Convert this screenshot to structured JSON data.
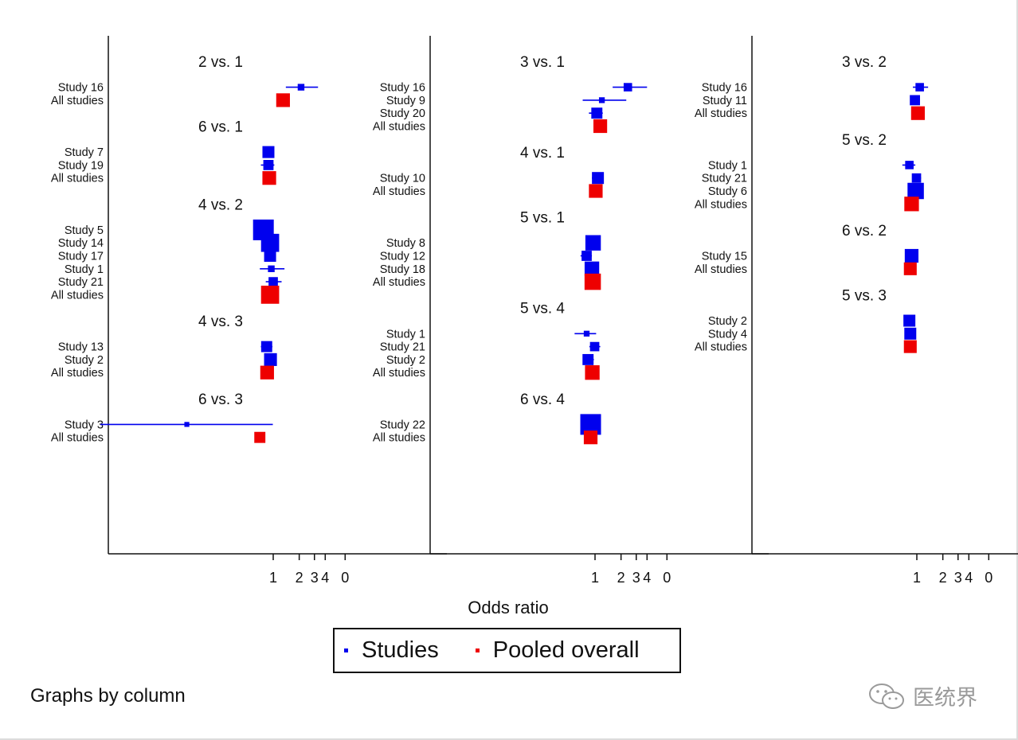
{
  "colors": {
    "study": "#0000ee",
    "pooled": "#ee0000",
    "axis": "#111111"
  },
  "chart_data": {
    "type": "forest",
    "xlabel": "Odds ratio",
    "xscale": "log",
    "xticks": [
      "1",
      "2",
      "3",
      "4",
      "0"
    ],
    "legend": [
      {
        "label": "Studies",
        "color": "#0000ee"
      },
      {
        "label": "Pooled overall",
        "color": "#ee0000"
      }
    ],
    "footer": "Graphs by column",
    "panels": [
      {
        "groups": [
          {
            "title": "2 vs. 1",
            "rows": [
              {
                "label": "Study 16",
                "type": "study",
                "or": 2.1,
                "lo": 1.4,
                "hi": 3.3,
                "weight": 0.2
              },
              {
                "label": "All studies",
                "type": "pooled",
                "or": 1.3,
                "weight": 0.6
              }
            ]
          },
          {
            "title": "6 vs. 1",
            "rows": [
              {
                "label": "Study 7",
                "type": "study",
                "or": 0.88,
                "lo": 0.78,
                "hi": 1.0,
                "weight": 0.5
              },
              {
                "label": "Study 19",
                "type": "study",
                "or": 0.88,
                "lo": 0.72,
                "hi": 1.03,
                "weight": 0.4
              },
              {
                "label": "All studies",
                "type": "pooled",
                "or": 0.9,
                "weight": 0.6
              }
            ]
          },
          {
            "title": "4 vs. 2",
            "rows": [
              {
                "label": "Study 5",
                "type": "study",
                "or": 0.77,
                "lo": 0.66,
                "hi": 0.9,
                "weight": 1.0
              },
              {
                "label": "Study 14",
                "type": "study",
                "or": 0.92,
                "lo": 0.82,
                "hi": 1.03,
                "weight": 0.85
              },
              {
                "label": "Study 17",
                "type": "study",
                "or": 0.92,
                "lo": 0.82,
                "hi": 1.01,
                "weight": 0.5
              },
              {
                "label": "Study 1",
                "type": "study",
                "or": 0.95,
                "lo": 0.7,
                "hi": 1.35,
                "weight": 0.2
              },
              {
                "label": "Study 21",
                "type": "study",
                "or": 1.0,
                "lo": 0.82,
                "hi": 1.25,
                "weight": 0.35
              },
              {
                "label": "All studies",
                "type": "pooled",
                "or": 0.92,
                "weight": 0.85
              }
            ]
          },
          {
            "title": "4 vs. 3",
            "rows": [
              {
                "label": "Study 13",
                "type": "study",
                "or": 0.84,
                "lo": 0.72,
                "hi": 0.98,
                "weight": 0.45
              },
              {
                "label": "Study 2",
                "type": "study",
                "or": 0.93,
                "lo": 0.85,
                "hi": 1.02,
                "weight": 0.55
              },
              {
                "label": "All studies",
                "type": "pooled",
                "or": 0.85,
                "weight": 0.6
              }
            ]
          },
          {
            "title": "6 vs. 3",
            "rows": [
              {
                "label": "Study 3",
                "type": "study",
                "or": 0.1,
                "lo": 0.01,
                "hi": 0.99,
                "weight": 0.1
              },
              {
                "label": "All studies",
                "type": "pooled",
                "or": 0.7,
                "weight": 0.45
              }
            ]
          }
        ]
      },
      {
        "groups": [
          {
            "title": "3 vs. 1",
            "rows": [
              {
                "label": "Study 16",
                "type": "study",
                "or": 2.4,
                "lo": 1.6,
                "hi": 4.0,
                "weight": 0.3
              },
              {
                "label": "Study 9",
                "type": "study",
                "or": 1.2,
                "lo": 0.72,
                "hi": 2.3,
                "weight": 0.15
              },
              {
                "label": "Study 20",
                "type": "study",
                "or": 1.05,
                "lo": 0.85,
                "hi": 1.23,
                "weight": 0.45
              },
              {
                "label": "All studies",
                "type": "pooled",
                "or": 1.15,
                "weight": 0.6
              }
            ]
          },
          {
            "title": "4 vs. 1",
            "rows": [
              {
                "label": "Study 10",
                "type": "study",
                "or": 1.08,
                "lo": 0.92,
                "hi": 1.25,
                "weight": 0.5
              },
              {
                "label": "All studies",
                "type": "pooled",
                "or": 1.02,
                "weight": 0.6
              }
            ]
          },
          {
            "title": "5 vs. 1",
            "rows": [
              {
                "label": "Study 8",
                "type": "study",
                "or": 0.95,
                "lo": 0.85,
                "hi": 1.05,
                "weight": 0.7
              },
              {
                "label": "Study 12",
                "type": "study",
                "or": 0.8,
                "lo": 0.68,
                "hi": 0.92,
                "weight": 0.4
              },
              {
                "label": "Study 18",
                "type": "study",
                "or": 0.92,
                "lo": 0.82,
                "hi": 1.02,
                "weight": 0.65
              },
              {
                "label": "All studies",
                "type": "pooled",
                "or": 0.94,
                "weight": 0.75
              }
            ]
          },
          {
            "title": "5 vs. 4",
            "rows": [
              {
                "label": "Study 1",
                "type": "study",
                "or": 0.8,
                "lo": 0.58,
                "hi": 1.03,
                "weight": 0.15
              },
              {
                "label": "Study 21",
                "type": "study",
                "or": 0.99,
                "lo": 0.86,
                "hi": 1.15,
                "weight": 0.35
              },
              {
                "label": "Study 2",
                "type": "study",
                "or": 0.83,
                "lo": 0.75,
                "hi": 0.97,
                "weight": 0.45
              },
              {
                "label": "All studies",
                "type": "pooled",
                "or": 0.93,
                "weight": 0.65
              }
            ]
          },
          {
            "title": "6 vs. 4",
            "rows": [
              {
                "label": "Study 22",
                "type": "study",
                "or": 0.89,
                "lo": 0.82,
                "hi": 0.97,
                "weight": 1.0
              },
              {
                "label": "All studies",
                "type": "pooled",
                "or": 0.89,
                "weight": 0.6
              }
            ]
          }
        ]
      },
      {
        "groups": [
          {
            "title": "3 vs. 2",
            "rows": [
              {
                "label": "Study 16",
                "type": "study",
                "or": 1.08,
                "lo": 0.9,
                "hi": 1.35,
                "weight": 0.3
              },
              {
                "label": "Study 11",
                "type": "study",
                "or": 0.95,
                "lo": 0.85,
                "hi": 1.08,
                "weight": 0.4
              },
              {
                "label": "All studies",
                "type": "pooled",
                "or": 1.03,
                "weight": 0.6
              }
            ]
          },
          {
            "title": "5 vs. 2",
            "rows": [
              {
                "label": "Study 1",
                "type": "study",
                "or": 0.82,
                "lo": 0.68,
                "hi": 0.96,
                "weight": 0.3
              },
              {
                "label": "Study 21",
                "type": "study",
                "or": 0.99,
                "lo": 0.88,
                "hi": 1.12,
                "weight": 0.35
              },
              {
                "label": "Study 6",
                "type": "study",
                "or": 0.97,
                "lo": 0.87,
                "hi": 1.06,
                "weight": 0.75
              },
              {
                "label": "All studies",
                "type": "pooled",
                "or": 0.87,
                "weight": 0.65
              }
            ]
          },
          {
            "title": "6 vs. 2",
            "rows": [
              {
                "label": "Study 15",
                "type": "study",
                "or": 0.87,
                "lo": 0.8,
                "hi": 0.95,
                "weight": 0.6
              },
              {
                "label": "All studies",
                "type": "pooled",
                "or": 0.84,
                "weight": 0.55
              }
            ]
          },
          {
            "title": "5 vs. 3",
            "rows": [
              {
                "label": "Study 2",
                "type": "study",
                "or": 0.82,
                "lo": 0.74,
                "hi": 0.9,
                "weight": 0.5
              },
              {
                "label": "Study 4",
                "type": "study",
                "or": 0.84,
                "lo": 0.76,
                "hi": 0.93,
                "weight": 0.5
              },
              {
                "label": "All studies",
                "type": "pooled",
                "or": 0.84,
                "weight": 0.55
              }
            ]
          }
        ]
      }
    ]
  },
  "watermark": {
    "text": "医统界",
    "icon": "wechat-icon"
  }
}
